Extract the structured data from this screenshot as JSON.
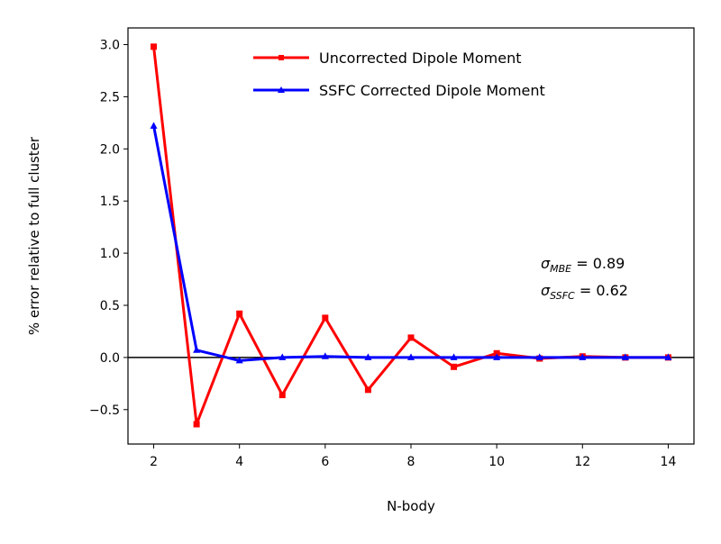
{
  "chart_data": {
    "type": "line",
    "title": "",
    "xlabel": "N-body",
    "ylabel": "% error relative to full cluster",
    "x": [
      2,
      3,
      4,
      5,
      6,
      7,
      8,
      9,
      10,
      11,
      12,
      13,
      14
    ],
    "xlim": [
      1.4,
      14.6
    ],
    "ylim": [
      -0.83,
      3.16
    ],
    "xticks": [
      "2",
      "4",
      "6",
      "8",
      "10",
      "12",
      "14"
    ],
    "yticks": [
      "−0.5",
      "0.0",
      "0.5",
      "1.0",
      "1.5",
      "2.0",
      "2.5",
      "3.0"
    ],
    "grid": false,
    "legend_position": "upper-right",
    "zero_line": true,
    "series": [
      {
        "name": "Uncorrected Dipole Moment",
        "color": "#ff0000",
        "marker": "square",
        "values": [
          2.98,
          -0.64,
          0.42,
          -0.36,
          0.38,
          -0.31,
          0.19,
          -0.09,
          0.04,
          -0.01,
          0.01,
          0.0,
          0.0
        ]
      },
      {
        "name": "SSFC Corrected Dipole Moment",
        "color": "#0000ff",
        "marker": "triangle",
        "values": [
          2.22,
          0.07,
          -0.03,
          0.0,
          0.01,
          0.0,
          0.0,
          0.0,
          0.0,
          0.0,
          0.0,
          0.0,
          0.0
        ]
      }
    ],
    "annotations": [
      {
        "symbol": "σ",
        "subscript": "MBE",
        "text": " = 0.89"
      },
      {
        "symbol": "σ",
        "subscript": "SSFC",
        "text": " = 0.62"
      }
    ]
  }
}
